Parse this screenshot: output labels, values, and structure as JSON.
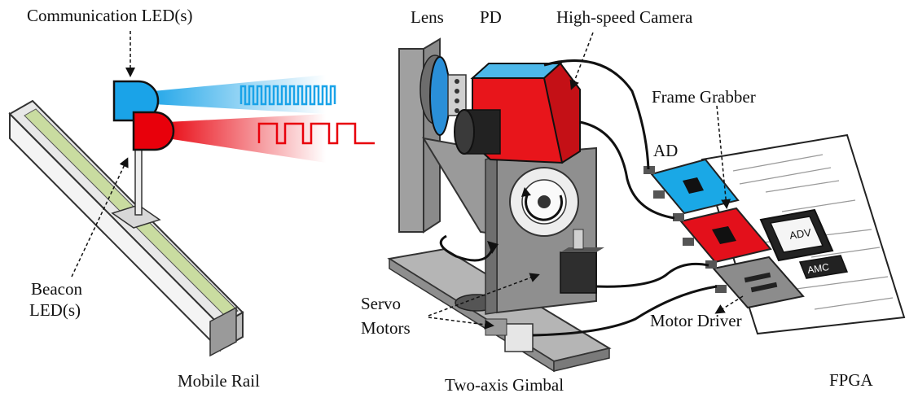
{
  "labels": {
    "communication_led": "Communication LED(s)",
    "beacon_led_line1": "Beacon",
    "beacon_led_line2": "LED(s)",
    "mobile_rail": "Mobile Rail",
    "lens": "Lens",
    "pd": "PD",
    "high_speed_camera": "High-speed Camera",
    "frame_grabber": "Frame Grabber",
    "ad": "AD",
    "servo_line1": "Servo",
    "servo_line2": "Motors",
    "motor_driver": "Motor Driver",
    "two_axis_gimbal": "Two-axis Gimbal",
    "fpga": "FPGA",
    "chip_adv": "ADV",
    "chip_amc": "AMC"
  },
  "colors": {
    "comm_led_blue": "#1aa3e8",
    "beacon_led_red": "#e8000b",
    "camera_red": "#e8151b",
    "camera_top_blue": "#4db8ea",
    "ad_board_blue": "#1aa8e6",
    "frame_board_red": "#e3101b",
    "gimbal_gray": "#8a8a8a",
    "rail_green": "#c9dca0"
  }
}
